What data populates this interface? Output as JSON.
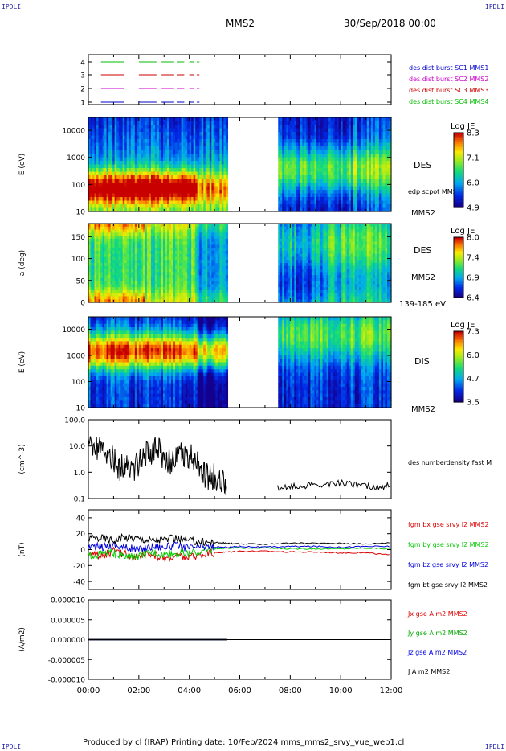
{
  "header": {
    "corner_left_top": "IPDLI",
    "corner_right_top": "IPDLI",
    "spacecraft": "MMS2",
    "date": "30/Sep/2018 00:00",
    "corner_left_bottom": "IPDLI",
    "corner_right_bottom": "IPDLI"
  },
  "footer": {
    "text": "Produced by cl (IRAP)   Printing date: 10/Feb/2024   mms_mms2_srvy_vue_web1.cl"
  },
  "chart_data": [
    {
      "type": "line",
      "panel": "burst",
      "x_range": [
        "00:00",
        "12:00"
      ],
      "yticks": [
        "4",
        "3",
        "2",
        "1"
      ],
      "legend": [
        {
          "label": "des dist burst SC1 MMS1",
          "color": "#0000cc"
        },
        {
          "label": "des dist burst SC2 MMS2",
          "color": "#cc00cc"
        },
        {
          "label": "des dist burst SC3 MMS3",
          "color": "#cc0000"
        },
        {
          "label": "des dist burst SC4 MMS4",
          "color": "#00bb00"
        }
      ],
      "burst_intervals": [
        [
          0.5,
          1.4
        ],
        [
          2.0,
          2.7
        ],
        [
          2.9,
          3.4
        ],
        [
          3.5,
          3.8
        ],
        [
          4.0,
          4.2
        ],
        [
          4.3,
          4.4
        ]
      ]
    },
    {
      "type": "heatmap",
      "panel": "des-energy",
      "ylabel": "E (eV)",
      "yscale": "log",
      "ylim": [
        10,
        30000
      ],
      "yticks": [
        "10000",
        "1000",
        "100",
        "10"
      ],
      "right_label": "DES",
      "right_sublabel": "edp scpot MMS2",
      "bottom_label": "MMS2",
      "colorbar": {
        "title": "Log JE",
        "ticks": [
          "8.3",
          "7.1",
          "6.0",
          "4.9"
        ]
      },
      "data_gap": [
        "05:30",
        "07:30"
      ]
    },
    {
      "type": "heatmap",
      "panel": "des-pitch",
      "ylabel": "a (deg)",
      "ylim": [
        0,
        180
      ],
      "yticks": [
        "150",
        "100",
        "50",
        "0"
      ],
      "right_label": "DES",
      "right_sublabel": "MMS2",
      "bottom_label": "139-185 eV",
      "colorbar": {
        "title": "Log JE",
        "ticks": [
          "8.0",
          "7.4",
          "6.9",
          "6.4"
        ]
      },
      "data_gap": [
        "05:30",
        "07:30"
      ]
    },
    {
      "type": "heatmap",
      "panel": "dis-energy",
      "ylabel": "E (eV)",
      "yscale": "log",
      "ylim": [
        10,
        30000
      ],
      "yticks": [
        "10000",
        "1000",
        "100",
        "10"
      ],
      "right_label": "DIS",
      "bottom_label": "MMS2",
      "colorbar": {
        "title": "Log JE",
        "ticks": [
          "7.3",
          "6.0",
          "4.7",
          "3.5"
        ]
      },
      "data_gap": [
        "05:30",
        "07:30"
      ]
    },
    {
      "type": "line",
      "panel": "density",
      "ylabel": "(cm^-3)",
      "yscale": "log",
      "ylim": [
        0.1,
        100
      ],
      "yticks": [
        "100.0",
        "10.0",
        "1.0",
        "0.1"
      ],
      "series": [
        {
          "name": "des numberdensity fast M",
          "color": "#000000",
          "x": [
            0.0,
            0.25,
            0.5,
            0.75,
            1.0,
            1.25,
            1.5,
            1.75,
            2.0,
            2.25,
            2.5,
            2.75,
            3.0,
            3.25,
            3.5,
            3.75,
            4.0,
            4.25,
            4.5,
            4.75,
            5.0,
            5.25,
            5.5,
            7.5,
            8.0,
            8.5,
            9.0,
            9.5,
            10.0,
            10.5,
            11.0,
            11.5,
            12.0
          ],
          "y": [
            7.0,
            8.0,
            6.5,
            5.0,
            3.0,
            1.2,
            3.0,
            1.3,
            2.5,
            6.0,
            4.0,
            9.0,
            3.5,
            2.5,
            7.0,
            5.0,
            4.0,
            2.5,
            1.0,
            0.6,
            0.7,
            0.4,
            0.45,
            0.25,
            0.3,
            0.3,
            0.35,
            0.35,
            0.4,
            0.35,
            0.3,
            0.25,
            0.35
          ]
        }
      ]
    },
    {
      "type": "line",
      "panel": "magnetic-field",
      "ylabel": "(nT)",
      "ylim": [
        -50,
        50
      ],
      "yticks": [
        "40",
        "20",
        "0",
        "-20",
        "-40"
      ],
      "series": [
        {
          "name": "fgm bx gse srvy l2 MMS2",
          "color": "#dd0000",
          "x": [
            0,
            0.5,
            1,
            1.5,
            2,
            2.5,
            3,
            3.5,
            4,
            4.5,
            5,
            5.5,
            6,
            7,
            8,
            9,
            10,
            11,
            12
          ],
          "y": [
            -3,
            -8,
            -2,
            -6,
            -10,
            -5,
            -12,
            -8,
            -10,
            -6,
            -4,
            -3,
            -2,
            -2,
            -3,
            -3,
            -4,
            -4,
            -7
          ]
        },
        {
          "name": "fgm by gse srvy l2 MMS2",
          "color": "#00cc00",
          "x": [
            0,
            0.5,
            1,
            1.5,
            2,
            2.5,
            3,
            3.5,
            4,
            4.5,
            5,
            5.5,
            6,
            7,
            8,
            9,
            10,
            11,
            12
          ],
          "y": [
            -8,
            -6,
            -4,
            -10,
            -9,
            -3,
            -6,
            -4,
            -5,
            -2,
            1,
            2,
            2,
            2,
            1,
            1,
            1,
            2,
            1
          ]
        },
        {
          "name": "fgm bz gse srvy l2 MMS2",
          "color": "#0000dd",
          "x": [
            0,
            0.5,
            1,
            1.5,
            2,
            2.5,
            3,
            3.5,
            4,
            4.5,
            5,
            5.5,
            6,
            7,
            8,
            9,
            10,
            11,
            12
          ],
          "y": [
            5,
            3,
            6,
            2,
            0,
            4,
            3,
            5,
            2,
            4,
            3,
            3,
            4,
            3,
            4,
            4,
            3,
            4,
            4
          ]
        },
        {
          "name": "fgm bt gse srvy l2 MMS2",
          "color": "#000000",
          "x": [
            0,
            0.5,
            1,
            1.5,
            2,
            2.5,
            3,
            3.5,
            4,
            4.5,
            5,
            5.5,
            6,
            7,
            8,
            9,
            10,
            11,
            12
          ],
          "y": [
            14,
            15,
            12,
            16,
            14,
            12,
            13,
            14,
            11,
            10,
            9,
            8,
            7,
            7,
            8,
            8,
            8,
            7,
            9
          ]
        }
      ]
    },
    {
      "type": "line",
      "panel": "current",
      "ylabel": "(A/m2)",
      "ylim": [
        -0.0001,
        0.0001
      ],
      "yticks": [
        "0.000010",
        "0.000005",
        "0.000000",
        "-0.000005",
        "-0.000010"
      ],
      "xticks": [
        "00:00",
        "02:00",
        "04:00",
        "06:00",
        "08:00",
        "10:00",
        "12:00"
      ],
      "series": [
        {
          "name": "Jx gse A m2 MMS2",
          "color": "#dd0000",
          "x": [
            0,
            5.5
          ],
          "y": [
            0,
            0
          ]
        },
        {
          "name": "Jy gse A m2 MMS2",
          "color": "#00aa00",
          "x": [
            0,
            5.5
          ],
          "y": [
            0,
            0
          ]
        },
        {
          "name": "Jz gse A m2 MMS2",
          "color": "#0000dd",
          "x": [
            0,
            5.5
          ],
          "y": [
            0,
            0
          ]
        },
        {
          "name": "J A m2 MMS2",
          "color": "#000000",
          "x": [
            0,
            5.5
          ],
          "y": [
            0,
            0
          ]
        }
      ]
    }
  ]
}
